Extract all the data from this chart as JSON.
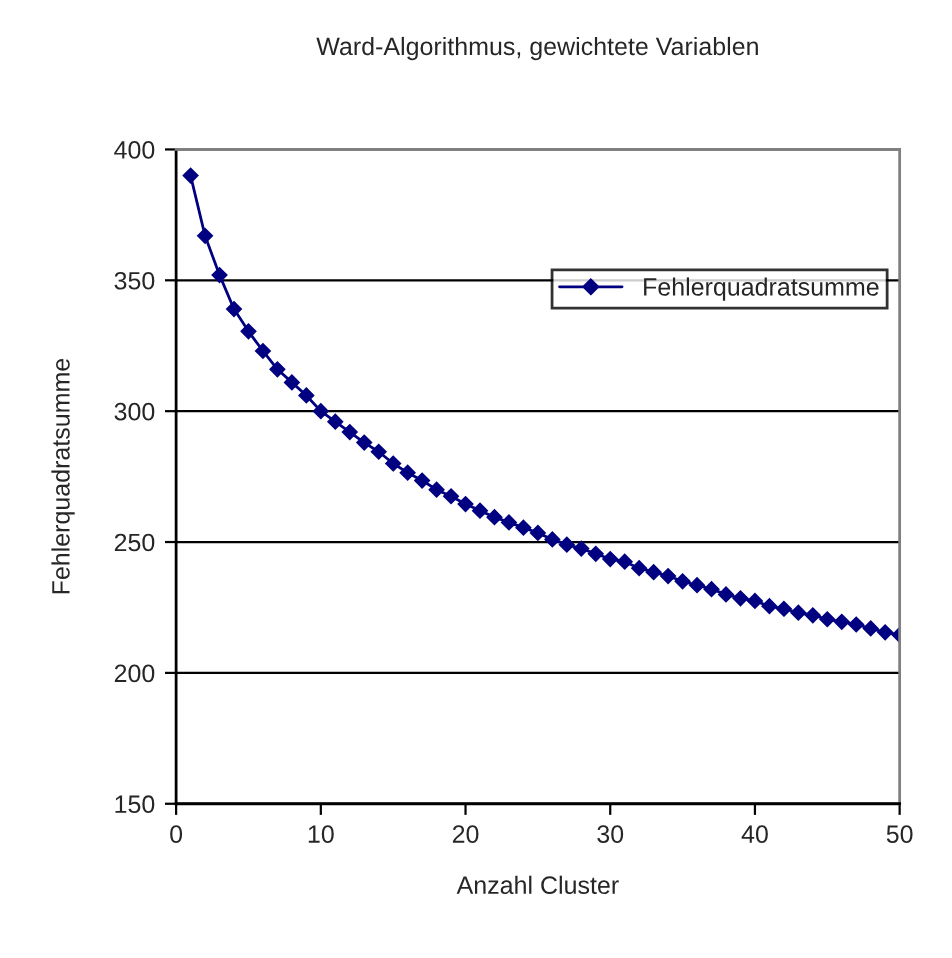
{
  "chart_data": {
    "type": "line",
    "title": "Ward-Algorithmus, gewichtete Variablen",
    "xlabel": "Anzahl Cluster",
    "ylabel": "Fehlerquadratsumme",
    "x": [
      1,
      2,
      3,
      4,
      5,
      6,
      7,
      8,
      9,
      10,
      11,
      12,
      13,
      14,
      15,
      16,
      17,
      18,
      19,
      20,
      21,
      22,
      23,
      24,
      25,
      26,
      27,
      28,
      29,
      30,
      31,
      32,
      33,
      34,
      35,
      36,
      37,
      38,
      39,
      40,
      41,
      42,
      43,
      44,
      45,
      46,
      47,
      48,
      49,
      50
    ],
    "series": [
      {
        "name": "Fehlerquadratsumme",
        "color": "#000080",
        "values": [
          390,
          367,
          352,
          339,
          330.5,
          323,
          316,
          311,
          306,
          300,
          296,
          292,
          288,
          284.5,
          280,
          276.5,
          273.5,
          270,
          267.5,
          264.5,
          262,
          259.5,
          257.5,
          255.5,
          253.5,
          251,
          249,
          247.5,
          245.5,
          243.5,
          242.5,
          240,
          238.5,
          237,
          235,
          233.5,
          232,
          230,
          228.5,
          227.5,
          225.5,
          224.5,
          223,
          222,
          220.5,
          219.5,
          218.5,
          217,
          215.5,
          214.5
        ]
      }
    ],
    "xlim": [
      0,
      50
    ],
    "xticks": [
      0,
      10,
      20,
      30,
      40,
      50
    ],
    "ylim": [
      150,
      400
    ],
    "yticks": [
      150,
      200,
      250,
      300,
      350,
      400
    ],
    "grid": "y",
    "legend": "top right",
    "marker": "diamond",
    "line_style": "solid"
  }
}
